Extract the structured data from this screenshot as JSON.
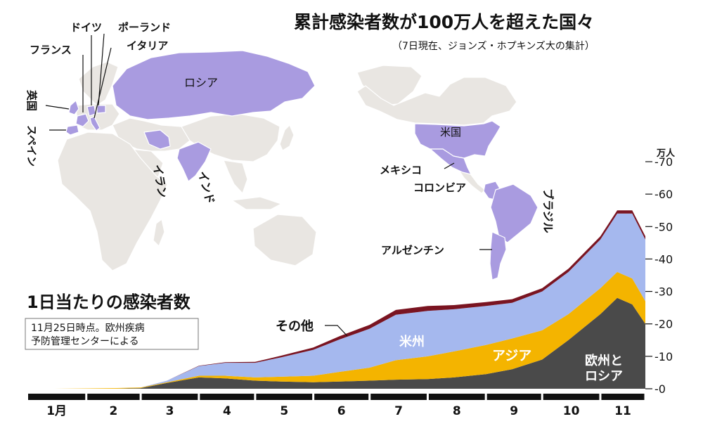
{
  "map": {
    "title": "累計感染者数が100万人を超えた国々",
    "subtitle": "（7日現在、ジョンズ・ホプキンズ大の集計）",
    "highlight_color": "#a99be0",
    "land_color": "#e9e6e2",
    "countries": {
      "russia": "ロシア",
      "usa": "米国",
      "mexico": "メキシコ",
      "colombia": "コロンビア",
      "brazil": "ブラジル",
      "argentina": "アルゼンチン",
      "india": "インド",
      "iran": "イラン",
      "france": "フランス",
      "germany": "ドイツ",
      "poland": "ポーランド",
      "italy": "イタリア",
      "uk": "英国",
      "spain": "スペイン"
    }
  },
  "chart_data": {
    "type": "area",
    "stacked": true,
    "title": "1日当たりの感染者数",
    "note_lines": [
      "11月25日時点。欧州疾病",
      "予防管理センターによる"
    ],
    "ylabel": "万人",
    "ylim": [
      0,
      70
    ],
    "yticks": [
      "0",
      "10",
      "20",
      "30",
      "40",
      "50",
      "60",
      "70"
    ],
    "months": [
      "1月",
      "2",
      "3",
      "4",
      "5",
      "6",
      "7",
      "8",
      "9",
      "10",
      "11"
    ],
    "month_starts": [
      "2020-01-01",
      "2020-02-01",
      "2020-03-01",
      "2020-04-01",
      "2020-05-01",
      "2020-06-01",
      "2020-07-01",
      "2020-08-01",
      "2020-09-01",
      "2020-10-01",
      "2020-11-01",
      "2020-11-25"
    ],
    "x": [
      "2020-01-15",
      "2020-02-15",
      "2020-03-01",
      "2020-03-15",
      "2020-04-01",
      "2020-04-15",
      "2020-05-01",
      "2020-05-15",
      "2020-06-01",
      "2020-06-15",
      "2020-07-01",
      "2020-07-15",
      "2020-08-01",
      "2020-08-15",
      "2020-09-01",
      "2020-09-15",
      "2020-10-01",
      "2020-10-15",
      "2020-11-01",
      "2020-11-10",
      "2020-11-18",
      "2020-11-25"
    ],
    "series": [
      {
        "name": "欧州とロシア",
        "color": "#4a4a4a",
        "values": [
          0,
          0,
          0.2,
          1.8,
          3.5,
          3.2,
          2.5,
          2.2,
          2,
          2.2,
          2.5,
          2.8,
          3,
          3.5,
          4.5,
          6,
          9,
          15,
          23,
          28,
          26,
          20
        ]
      },
      {
        "name": "アジア",
        "color": "#f4b400",
        "values": [
          0,
          0.2,
          0.2,
          0.2,
          0.5,
          0.8,
          1,
          1.5,
          2,
          3,
          4,
          6,
          7,
          8,
          9,
          9.5,
          9,
          8,
          8,
          8,
          8,
          7
        ]
      },
      {
        "name": "米州",
        "color": "#a5b8ee",
        "values": [
          0,
          0,
          0,
          0.5,
          3,
          4,
          4.5,
          6,
          8,
          10,
          12,
          14,
          14,
          13,
          12,
          11,
          12,
          13,
          15,
          18,
          20,
          19
        ]
      },
      {
        "name": "その他",
        "color": "#7a1421",
        "values": [
          0,
          0,
          0,
          0,
          0.1,
          0.2,
          0.3,
          0.5,
          0.7,
          1,
          1.2,
          1.5,
          1.5,
          1.3,
          1.2,
          1.1,
          1,
          1,
          1,
          1,
          1,
          1
        ]
      }
    ]
  }
}
